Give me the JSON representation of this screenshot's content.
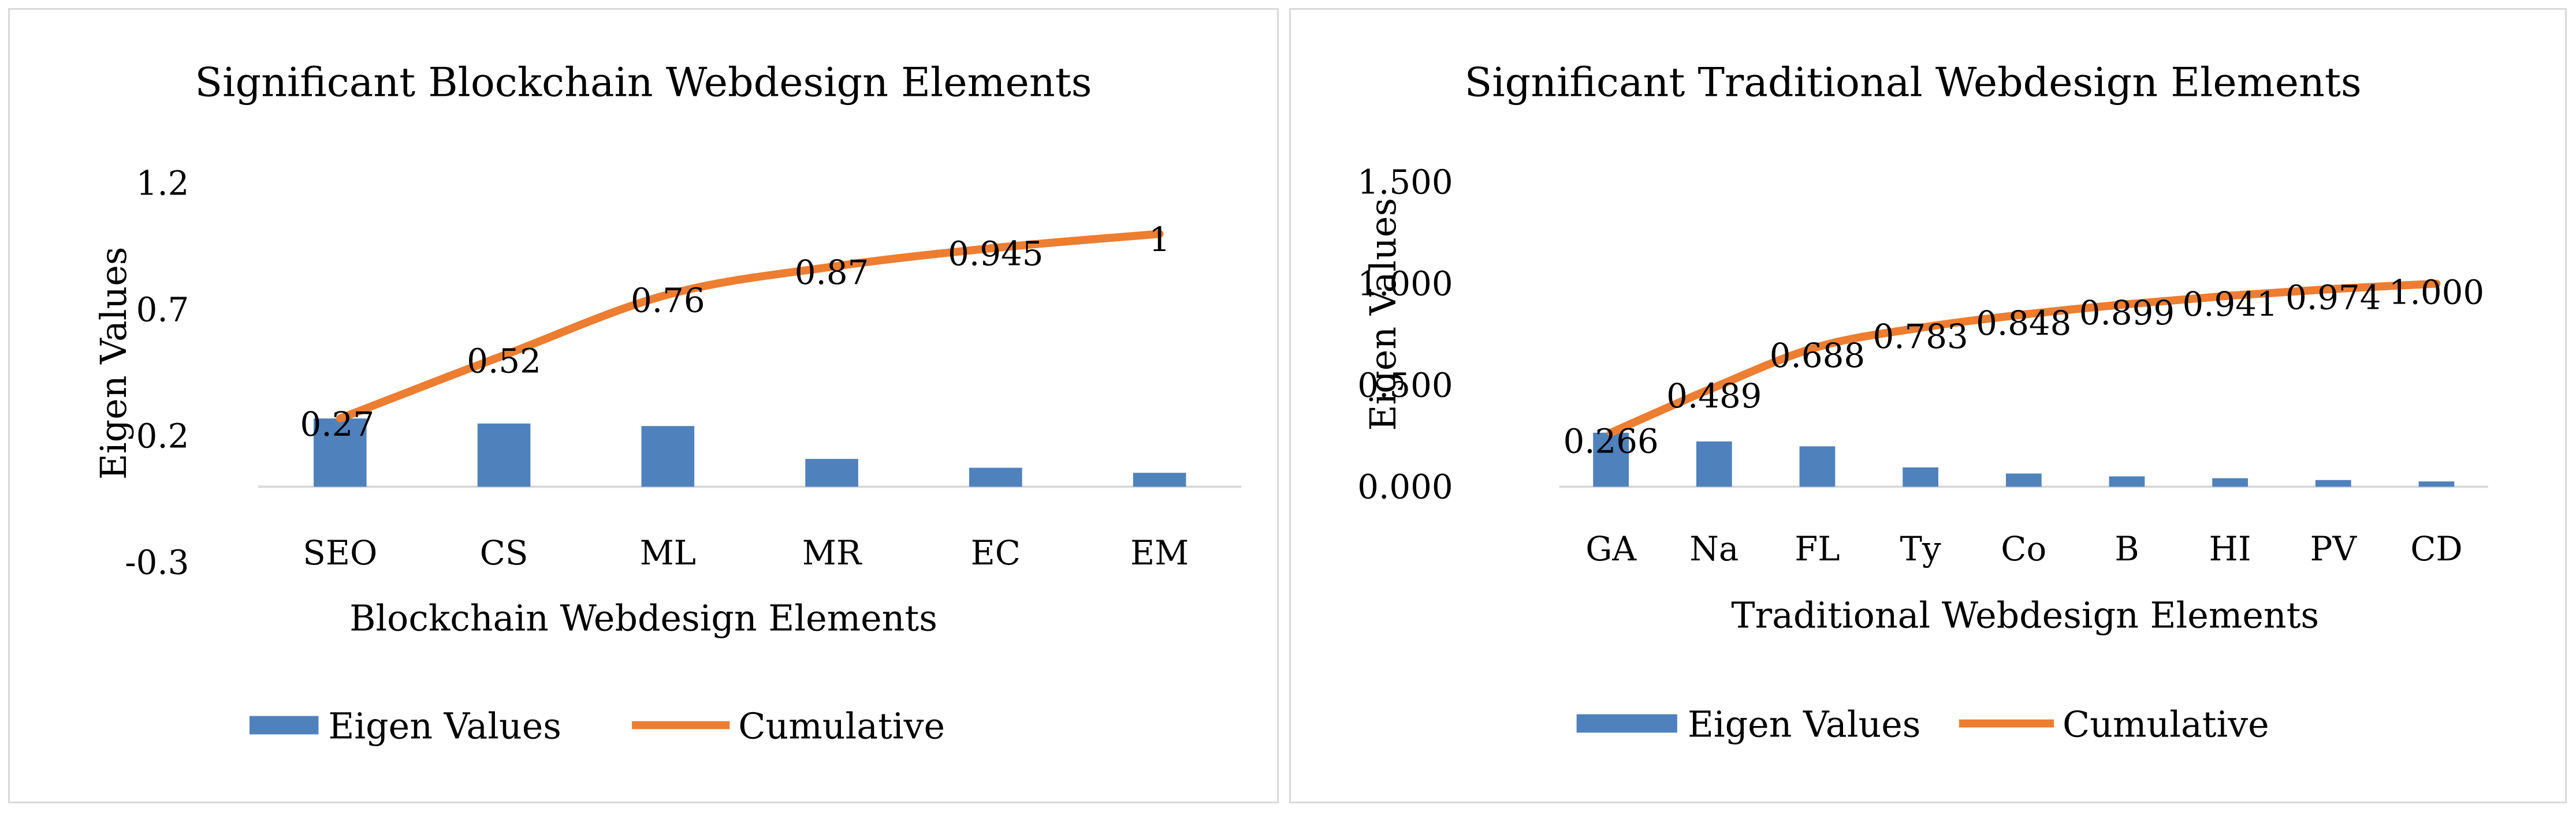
{
  "chart_data": [
    {
      "type": "bar",
      "title": "Significant Blockchain Webdesign Elements",
      "xlabel": "Blockchain Webdesign Elements",
      "ylabel": "Eigen Values",
      "categories": [
        "SEO",
        "CS",
        "ML",
        "MR",
        "EC",
        "EM"
      ],
      "y_ticks": [
        "1.2",
        "0.7",
        "0.2",
        "-0.3"
      ],
      "ylim": [
        -0.3,
        1.2
      ],
      "grid": false,
      "legend": "bottom",
      "series": [
        {
          "name": "Eigen Values",
          "kind": "bar",
          "color": "#4f81bd",
          "values": [
            0.27,
            0.25,
            0.24,
            0.11,
            0.075,
            0.055
          ]
        },
        {
          "name": "Cumulative",
          "kind": "line",
          "color": "#ed7d31",
          "values": [
            0.27,
            0.52,
            0.76,
            0.87,
            0.945,
            1.0
          ],
          "labels": [
            "0.27",
            "0.52",
            "0.76",
            "0.87",
            "0.945",
            "1"
          ]
        }
      ]
    },
    {
      "type": "bar",
      "title": "Significant Traditional Webdesign Elements",
      "xlabel": "Traditional Webdesign Elements",
      "ylabel": "Eigen Values",
      "categories": [
        "GA",
        "Na",
        "FL",
        "Ty",
        "Co",
        "B",
        "HI",
        "PV",
        "CD"
      ],
      "y_ticks": [
        "1.500",
        "1.000",
        "0.500",
        "0.000"
      ],
      "ylim": [
        0,
        1.5
      ],
      "grid": false,
      "legend": "bottom",
      "series": [
        {
          "name": "Eigen Values",
          "kind": "bar",
          "color": "#4f81bd",
          "values": [
            0.266,
            0.223,
            0.199,
            0.095,
            0.065,
            0.051,
            0.042,
            0.033,
            0.026
          ]
        },
        {
          "name": "Cumulative",
          "kind": "line",
          "color": "#ed7d31",
          "values": [
            0.266,
            0.489,
            0.688,
            0.783,
            0.848,
            0.899,
            0.941,
            0.974,
            1.0
          ],
          "labels": [
            "0.266",
            "0.489",
            "0.688",
            "0.783",
            "0.848",
            "0.899",
            "0.941",
            "0.974",
            "1.000"
          ]
        }
      ]
    }
  ]
}
